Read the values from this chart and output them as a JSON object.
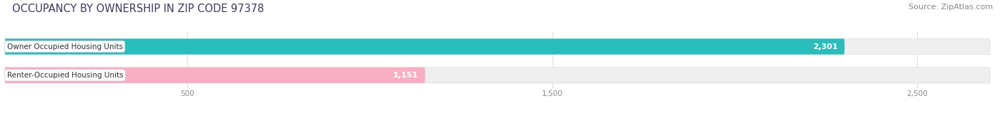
{
  "title": "OCCUPANCY BY OWNERSHIP IN ZIP CODE 97378",
  "source": "Source: ZipAtlas.com",
  "categories": [
    "Owner Occupied Housing Units",
    "Renter-Occupied Housing Units"
  ],
  "values": [
    2301,
    1151
  ],
  "bar_colors": [
    "#2bbcbc",
    "#f7afc4"
  ],
  "label_bg_colors": [
    "#ffffff",
    "#ffffff"
  ],
  "value_label_colors": [
    "#ffffff",
    "#555555"
  ],
  "xlim_max": 2700,
  "xticks": [
    500,
    1500,
    2500
  ],
  "xtick_labels": [
    "500",
    "1,500",
    "2,500"
  ],
  "title_fontsize": 10.5,
  "source_fontsize": 8,
  "bar_label_fontsize": 8,
  "category_fontsize": 7.5,
  "background_color": "#ffffff",
  "bar_background_color": "#efefef",
  "bar_height": 0.55,
  "bar_rounding": 0.28
}
